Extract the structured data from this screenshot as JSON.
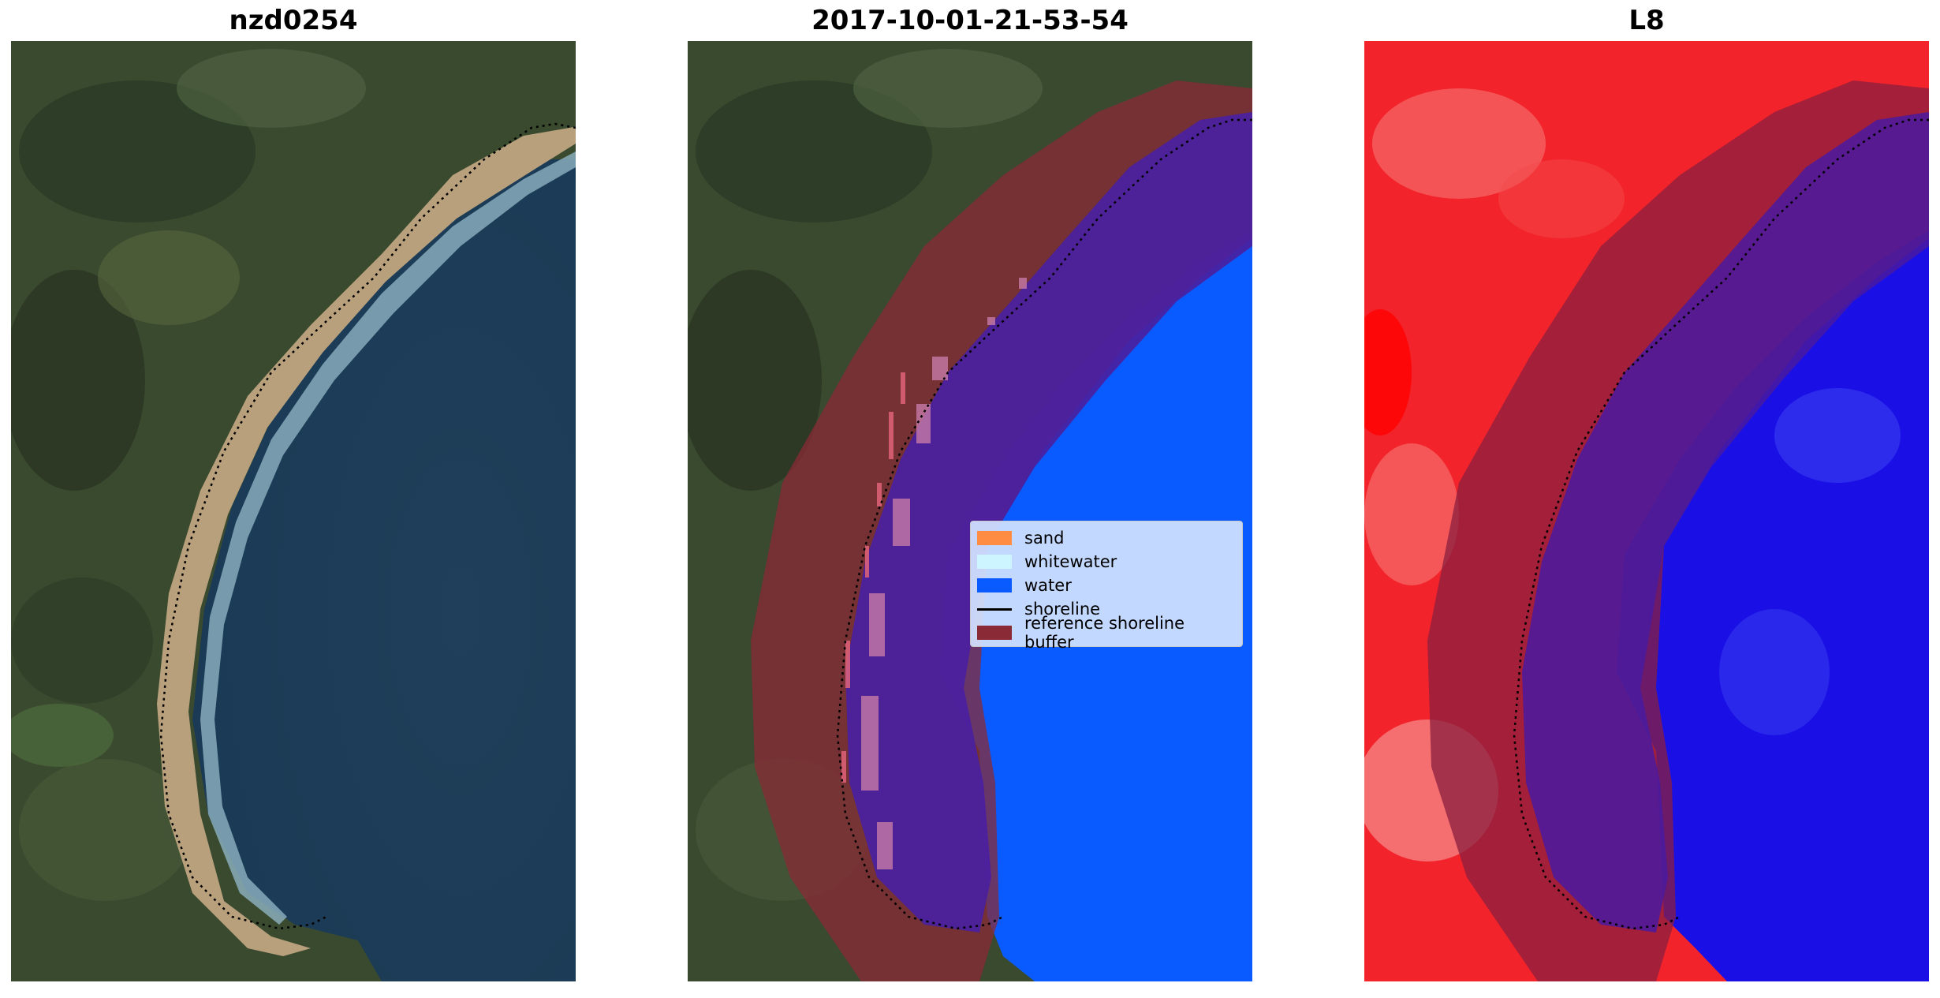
{
  "panels": [
    {
      "title": "nzd0254"
    },
    {
      "title": "2017-10-01-21-53-54"
    },
    {
      "title": "L8"
    }
  ],
  "legend": {
    "items": [
      {
        "label": "sand",
        "color": "#ff8c42"
      },
      {
        "label": "whitewater",
        "color": "#ccf5ff"
      },
      {
        "label": "water",
        "color": "#0a5bff"
      },
      {
        "label": "shoreline",
        "color": "#000000"
      },
      {
        "label": "reference shoreline buffer",
        "color": "#8a2a36"
      }
    ]
  },
  "colors": {
    "land": "#3b4a2e",
    "ocean": "#1f3f5a",
    "beach": "#b9a27c",
    "buffer": "#7a1f3f",
    "water_class": "#0a5bff",
    "index_land": "#f2232a",
    "index_water": "#1a10e6"
  }
}
